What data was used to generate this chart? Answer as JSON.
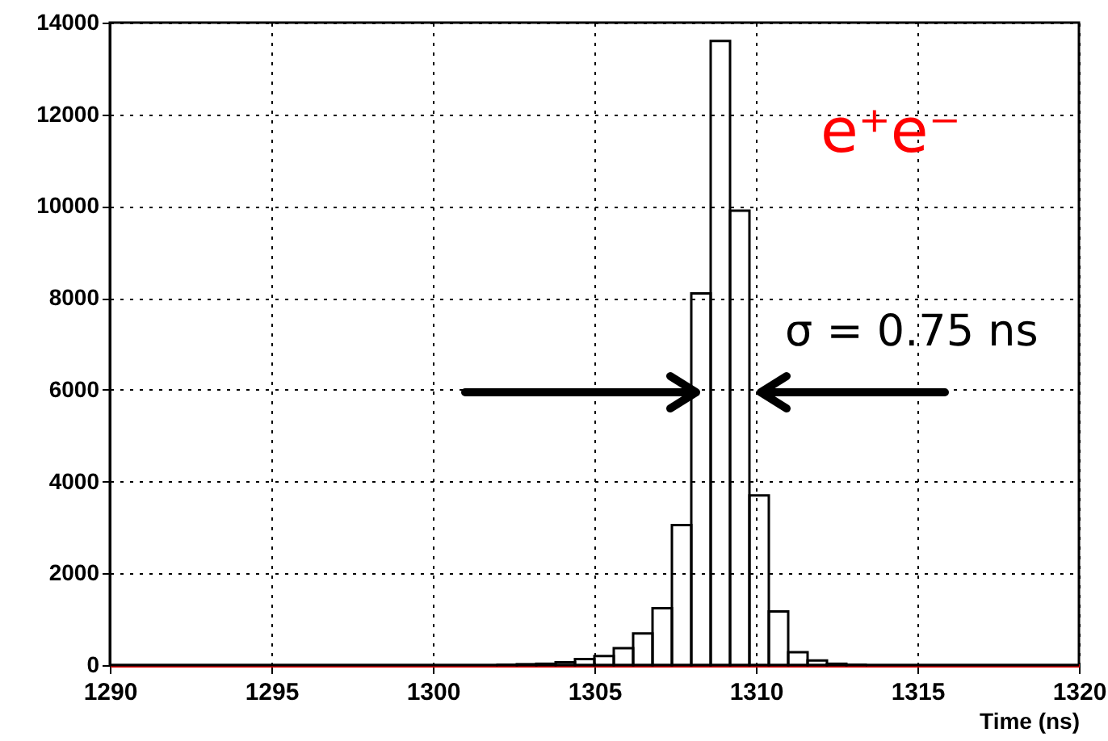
{
  "chart_data": {
    "type": "histogram",
    "xlabel": "Time (ns)",
    "color": "#000000",
    "bins": [
      1290,
      1290.6,
      1291.2,
      1291.8,
      1292.4,
      1293,
      1293.6,
      1294.2,
      1294.8,
      1295.4,
      1296,
      1296.6,
      1297.2,
      1297.8,
      1298.4,
      1299,
      1299.6,
      1300.2,
      1300.8,
      1301.4,
      1302,
      1302.6,
      1303.2,
      1303.8,
      1304.4,
      1305,
      1305.6,
      1306.2,
      1306.8,
      1307.4,
      1308,
      1308.6,
      1309.2,
      1309.8,
      1310.4,
      1311,
      1311.6,
      1312.2,
      1312.8,
      1313.4,
      1314,
      1314.6,
      1315.2,
      1315.8,
      1316.4,
      1317,
      1317.6,
      1318.2,
      1318.8,
      1319.4,
      1320
    ],
    "values": [
      0,
      0,
      0,
      0,
      0,
      0,
      0,
      0,
      0,
      0,
      0,
      0,
      0,
      0,
      0,
      0,
      0,
      0,
      0,
      0,
      10,
      20,
      30,
      60,
      130,
      200,
      370,
      690,
      1240,
      3050,
      8100,
      13600,
      9900,
      3700,
      1170,
      280,
      100,
      30,
      10,
      0,
      0,
      0,
      0,
      0,
      0,
      0,
      0,
      0,
      0,
      0
    ],
    "xlim": [
      1290,
      1320
    ],
    "ylim": [
      0,
      14000
    ],
    "xticks": [
      1290,
      1295,
      1300,
      1305,
      1310,
      1315,
      1320
    ],
    "yticks": [
      0,
      2000,
      4000,
      6000,
      8000,
      10000,
      12000,
      14000
    ],
    "grid": true,
    "annotations": [
      "e⁺e⁻",
      "σ = 0.75 ns"
    ]
  }
}
